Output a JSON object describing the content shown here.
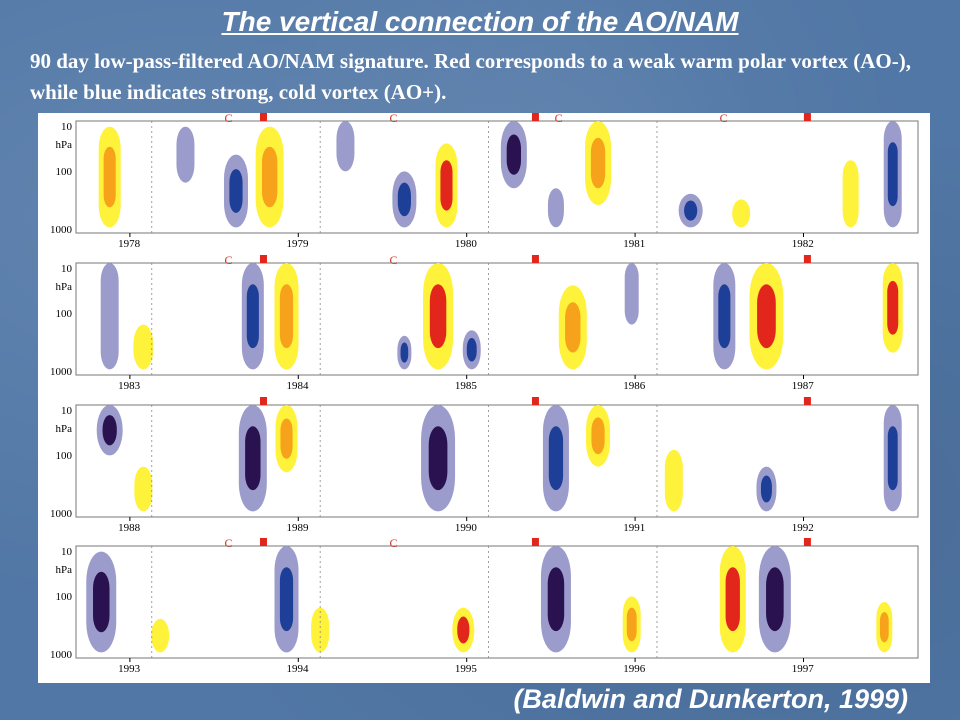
{
  "slide": {
    "title": "The vertical connection of the AO/NAM",
    "subtitle": "90 day low-pass-filtered AO/NAM signature. Red corresponds to a weak warm polar vortex (AO-), while blue indicates strong, cold vortex (AO+).",
    "citation": "(Baldwin and Dunkerton, 1999)"
  },
  "figure": {
    "pressure_labels": [
      "10",
      "hPa",
      "100",
      "1000"
    ],
    "colors": {
      "yellow": "#fff23a",
      "orange": "#f7a21b",
      "red": "#e3261c",
      "lavender": "#9b9ccc",
      "blue": "#1e3f98",
      "navy": "#2a1150"
    },
    "panels": [
      {
        "years": [
          "1978",
          "1979",
          "1980",
          "1981",
          "1982"
        ],
        "c_marks": [
          "C",
          "C",
          "C",
          "C"
        ]
      },
      {
        "years": [
          "1983",
          "1984",
          "1985",
          "1986",
          "1987"
        ],
        "c_marks": [
          "C",
          "C"
        ]
      },
      {
        "years": [
          "1988",
          "1989",
          "1990",
          "1991",
          "1992"
        ],
        "c_marks": []
      },
      {
        "years": [
          "1993",
          "1994",
          "1995",
          "1996",
          "1997"
        ],
        "c_marks": [
          "C",
          "C"
        ]
      }
    ]
  }
}
